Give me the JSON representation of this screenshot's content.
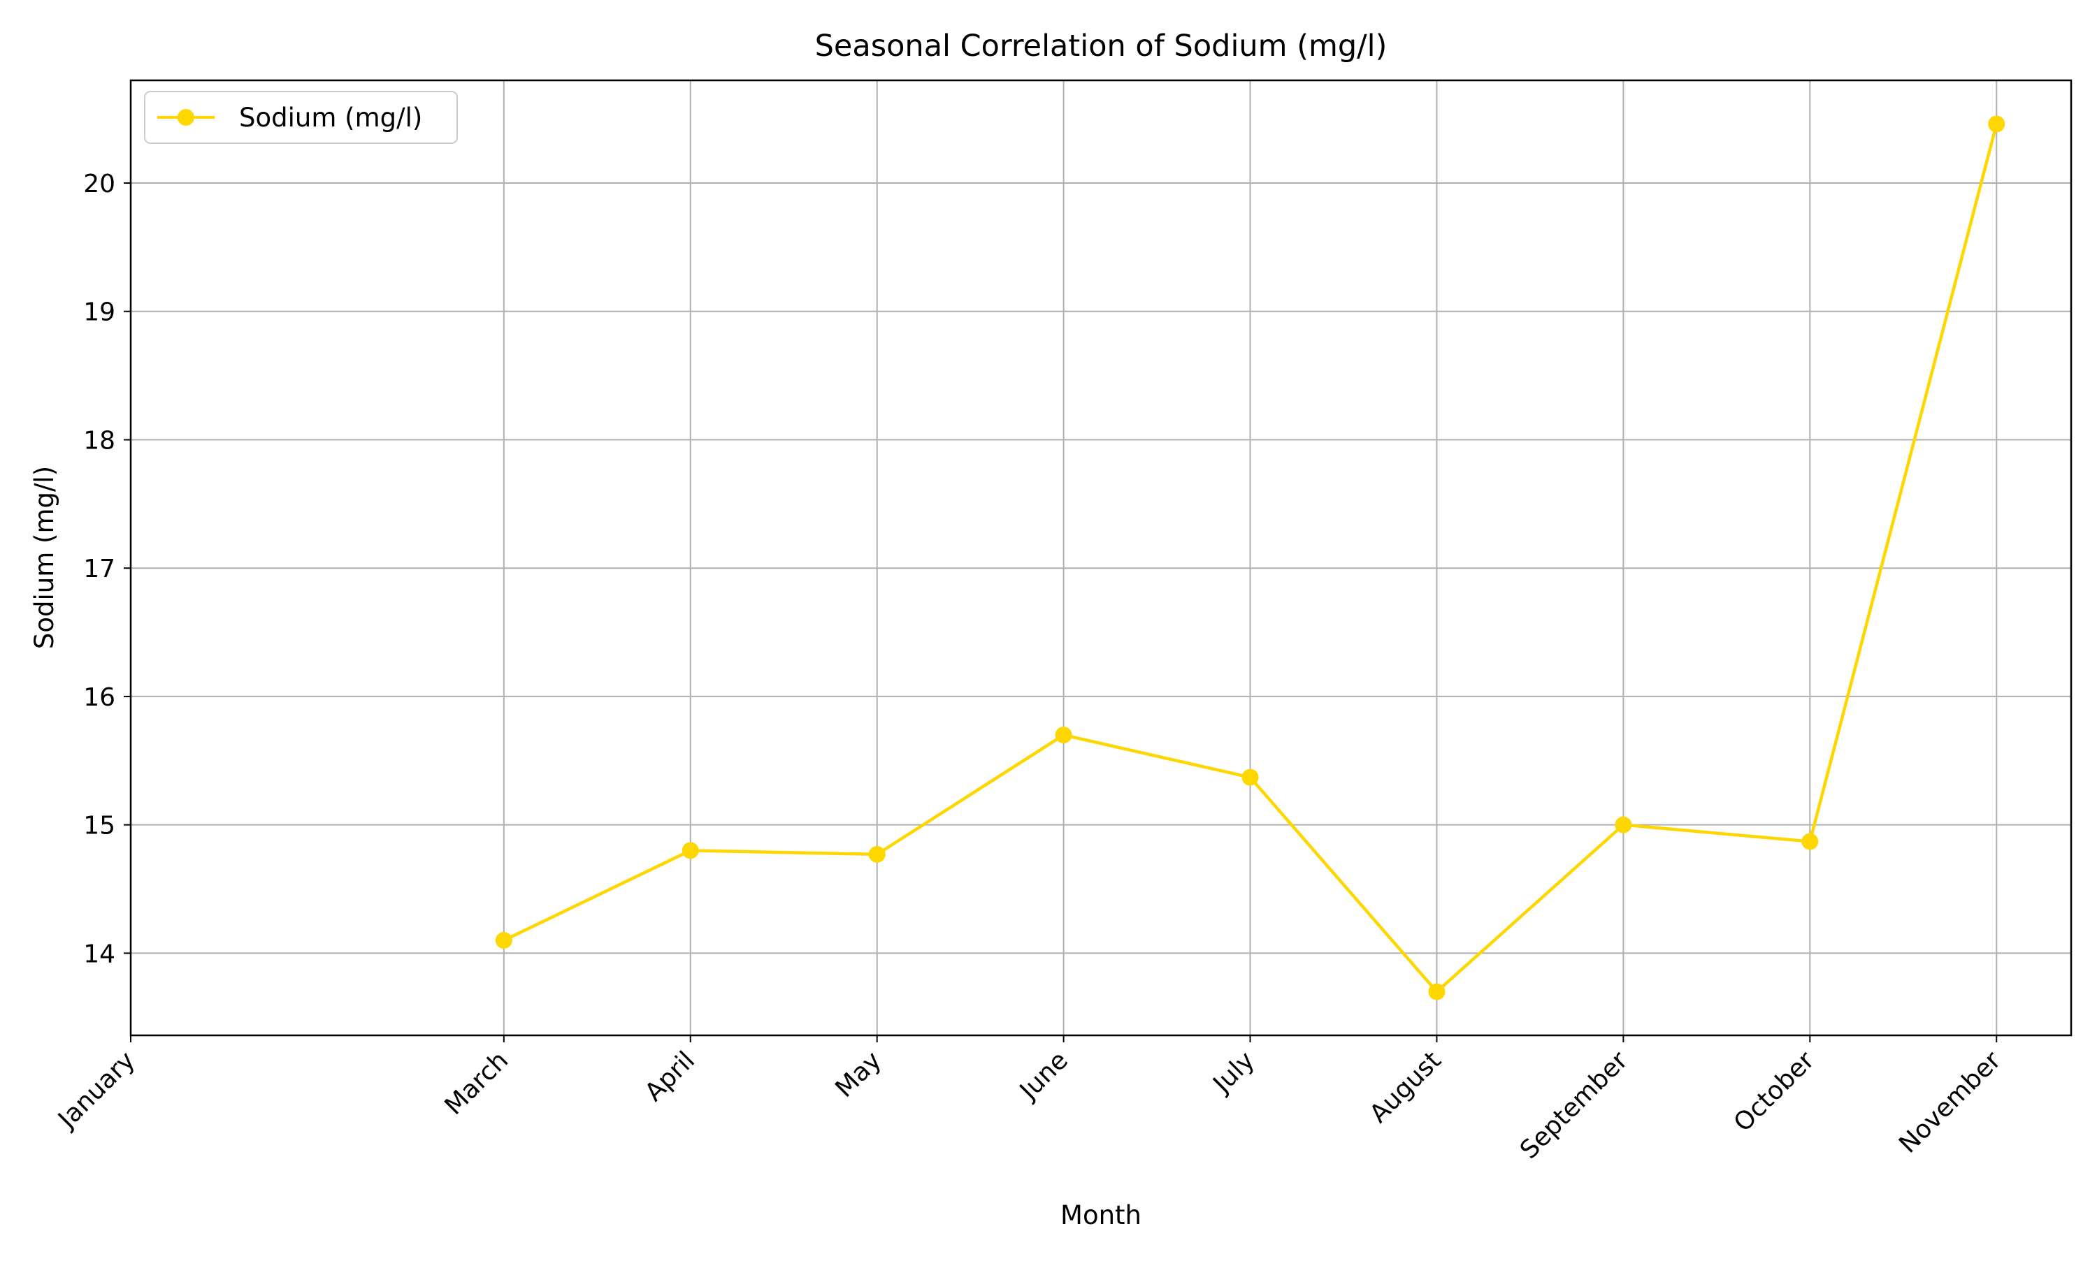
{
  "chart_data": {
    "type": "line",
    "title": "Seasonal Correlation of Sodium (mg/l)",
    "xlabel": "Month",
    "ylabel": "Sodium (mg/l)",
    "x_ticks": [
      "January",
      "March",
      "April",
      "May",
      "June",
      "July",
      "August",
      "September",
      "October",
      "November"
    ],
    "x_tick_positions": [
      1,
      3,
      4,
      5,
      6,
      7,
      8,
      9,
      10,
      11
    ],
    "xlim": [
      1,
      11.4
    ],
    "ylim": [
      13.36,
      20.8
    ],
    "y_ticks": [
      14,
      15,
      16,
      17,
      18,
      19,
      20
    ],
    "grid": true,
    "legend_position": "upper-left",
    "series": [
      {
        "name": "Sodium (mg/l)",
        "color": "#FFD700",
        "marker": "circle",
        "x": [
          3,
          4,
          5,
          6,
          7,
          8,
          9,
          10,
          11
        ],
        "y": [
          14.1,
          14.8,
          14.77,
          15.7,
          15.37,
          13.7,
          15.0,
          14.87,
          20.46
        ]
      }
    ]
  }
}
